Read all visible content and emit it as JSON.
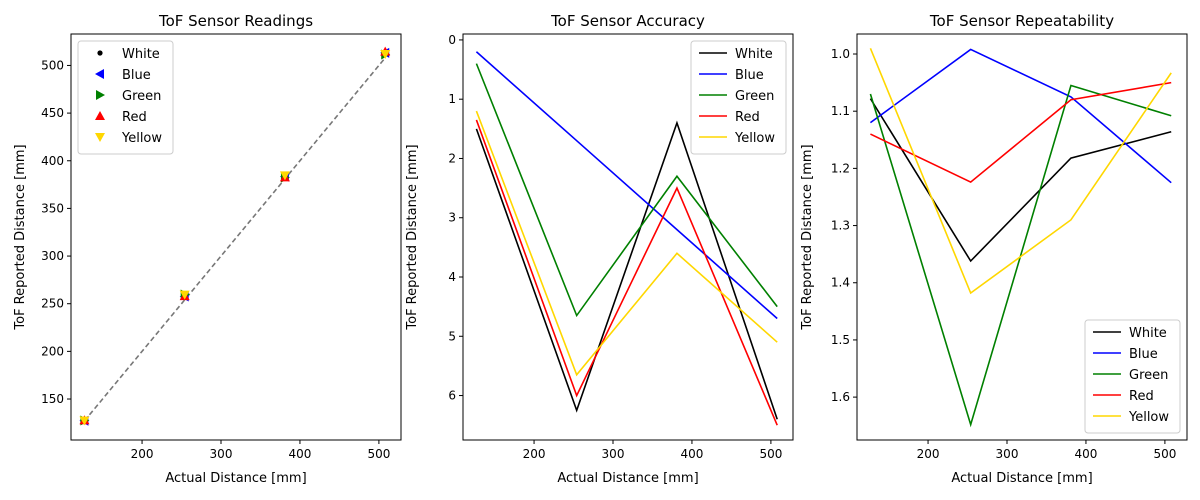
{
  "chart_data": [
    {
      "type": "scatter",
      "title": "ToF Sensor Readings",
      "xlabel": "Actual Distance [mm]",
      "ylabel": "ToF Reported Distance [mm]",
      "xlim": [
        110,
        528
      ],
      "ylim": [
        107,
        533
      ],
      "xticks": [
        200,
        300,
        400,
        500
      ],
      "yticks": [
        150,
        200,
        250,
        300,
        350,
        400,
        450,
        500
      ],
      "y_inverted": false,
      "legend": "upper-left",
      "reference_line": {
        "x": [
          127,
          508
        ],
        "y": [
          127,
          508
        ],
        "style": "dashed",
        "color": "#777777"
      },
      "x": [
        127,
        254,
        381,
        508
      ],
      "series": [
        {
          "name": "White",
          "color": "#000000",
          "marker": "point",
          "values": [
            127.8,
            259.2,
            382.6,
            512.4
          ]
        },
        {
          "name": "Blue",
          "color": "#0000ff",
          "marker": "triangle-left",
          "values": [
            127.2,
            257.6,
            383.3,
            513.2
          ]
        },
        {
          "name": "Green",
          "color": "#008000",
          "marker": "triangle-right",
          "values": [
            127.4,
            259.7,
            382.3,
            511.5
          ]
        },
        {
          "name": "Red",
          "color": "#ff0000",
          "marker": "triangle-up",
          "values": [
            127.7,
            258.0,
            382.5,
            514.5
          ]
        },
        {
          "name": "Yellow",
          "color": "#ffd700",
          "marker": "triangle-down",
          "values": [
            127.4,
            259.6,
            384.6,
            512.0
          ]
        }
      ]
    },
    {
      "type": "line",
      "title": "ToF Sensor Accuracy",
      "xlabel": "Actual Distance [mm]",
      "ylabel": "ToF Reported Distance [mm]",
      "xlim": [
        110,
        528
      ],
      "ylim": [
        6.75,
        -0.1
      ],
      "xticks": [
        200,
        300,
        400,
        500
      ],
      "yticks": [
        0,
        1,
        2,
        3,
        4,
        5,
        6
      ],
      "y_inverted": true,
      "legend": "upper-right",
      "x": [
        127,
        254,
        381,
        508
      ],
      "series": [
        {
          "name": "White",
          "color": "#000000",
          "values": [
            1.5,
            6.25,
            1.4,
            6.4
          ]
        },
        {
          "name": "Blue",
          "color": "#0000ff",
          "values": [
            0.2,
            1.7,
            3.2,
            4.7
          ]
        },
        {
          "name": "Green",
          "color": "#008000",
          "values": [
            0.4,
            4.65,
            2.3,
            4.5
          ]
        },
        {
          "name": "Red",
          "color": "#ff0000",
          "values": [
            1.35,
            6.0,
            2.5,
            6.5
          ]
        },
        {
          "name": "Yellow",
          "color": "#ffd700",
          "values": [
            1.2,
            5.65,
            3.6,
            5.1
          ]
        }
      ]
    },
    {
      "type": "line",
      "title": "ToF Sensor Repeatability",
      "xlabel": "Actual Distance [mm]",
      "ylabel": "ToF Reported Distance [mm]",
      "xlim": [
        110,
        528
      ],
      "ylim": [
        1.675,
        0.965
      ],
      "xticks": [
        200,
        300,
        400,
        500
      ],
      "yticks": [
        1.0,
        1.1,
        1.2,
        1.3,
        1.4,
        1.5,
        1.6
      ],
      "y_inverted": true,
      "legend": "lower-right",
      "x": [
        127,
        254,
        381,
        508
      ],
      "series": [
        {
          "name": "White",
          "color": "#000000",
          "values": [
            1.078,
            1.362,
            1.182,
            1.136
          ]
        },
        {
          "name": "Blue",
          "color": "#0000ff",
          "values": [
            1.12,
            0.992,
            1.075,
            1.225
          ]
        },
        {
          "name": "Green",
          "color": "#008000",
          "values": [
            1.07,
            1.648,
            1.055,
            1.108
          ]
        },
        {
          "name": "Red",
          "color": "#ff0000",
          "values": [
            1.14,
            1.224,
            1.08,
            1.05
          ]
        },
        {
          "name": "Yellow",
          "color": "#ffd700",
          "values": [
            0.99,
            1.418,
            1.29,
            1.033
          ]
        }
      ]
    }
  ]
}
